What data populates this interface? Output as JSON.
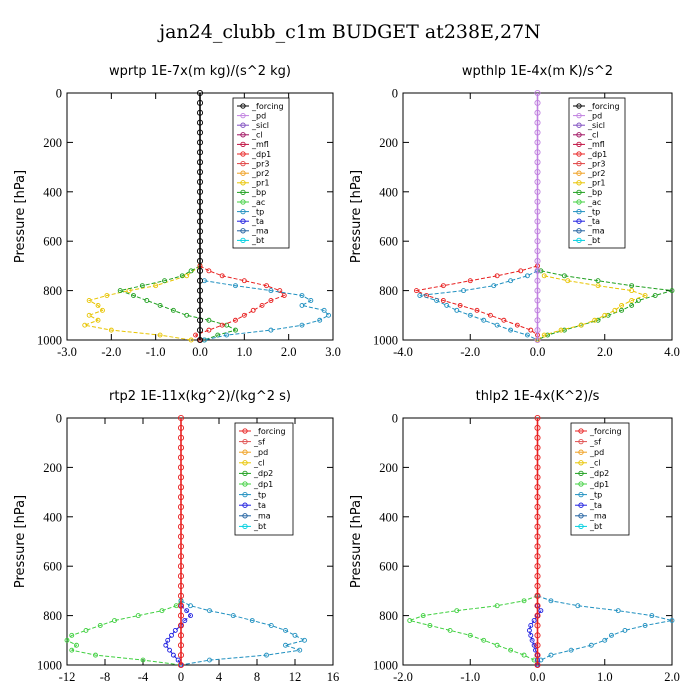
{
  "title": "jan24_clubb_c1m  BUDGET at238E,27N",
  "chart_data": [
    {
      "type": "line",
      "title": "wprtp  1E-7x(m kg)/(s^2 kg)",
      "ylabel": "Pressure [hPa]",
      "xlim": [
        -3.0,
        3.0
      ],
      "ylim": [
        1000,
        0
      ],
      "xticks": [
        "-3.0",
        "-2.0",
        "-1.0",
        "0.0",
        "1.0",
        "2.0",
        "3.0"
      ],
      "yticks": [
        "0",
        "200",
        "400",
        "600",
        "800",
        "1000"
      ],
      "legend": [
        "_forcing",
        "_pd",
        "_sicl",
        "_cl",
        "_mfl",
        "_dp1",
        "_pr3",
        "_pr2",
        "_pr1",
        "_bp",
        "_ac",
        "_tp",
        "_ta",
        "_ma",
        "_bt"
      ],
      "series": [
        {
          "name": "_pr1",
          "color": "#e8c400",
          "y": [
            700,
            740,
            780,
            800,
            820,
            840,
            860,
            880,
            900,
            920,
            940,
            960,
            980,
            1000
          ],
          "x": [
            0.0,
            -0.3,
            -1.0,
            -1.6,
            -2.1,
            -2.5,
            -2.3,
            -2.2,
            -2.5,
            -2.3,
            -2.6,
            -2.0,
            -0.9,
            -0.2
          ]
        },
        {
          "name": "_bp",
          "color": "#20a020",
          "y": [
            700,
            720,
            740,
            760,
            780,
            800,
            820,
            840,
            860,
            880,
            900,
            920,
            940,
            960,
            980,
            1000
          ],
          "x": [
            0.0,
            -0.2,
            -0.4,
            -0.8,
            -1.3,
            -1.8,
            -1.5,
            -1.2,
            -0.9,
            -0.6,
            -0.3,
            0.2,
            0.6,
            0.8,
            0.4,
            0.1
          ]
        },
        {
          "name": "_dp1",
          "color": "#e82020",
          "y": [
            700,
            720,
            740,
            760,
            780,
            800,
            820,
            840,
            860,
            880,
            900,
            920,
            940,
            960,
            980,
            1000
          ],
          "x": [
            0.0,
            0.2,
            0.5,
            1.0,
            1.5,
            1.8,
            1.9,
            1.6,
            1.4,
            1.2,
            1.0,
            0.8,
            0.5,
            0.2,
            -0.1,
            0.0
          ]
        },
        {
          "name": "_tp",
          "color": "#2090c0",
          "y": [
            760,
            780,
            800,
            820,
            840,
            860,
            880,
            900,
            920,
            940,
            960,
            980,
            1000
          ],
          "x": [
            0.1,
            0.8,
            1.6,
            2.3,
            2.5,
            2.3,
            2.8,
            2.9,
            2.7,
            2.3,
            1.6,
            0.6,
            0.1
          ]
        },
        {
          "name": "_forcing",
          "color": "#000000",
          "y": [
            0,
            40,
            80,
            120,
            160,
            200,
            240,
            280,
            320,
            360,
            400,
            440,
            480,
            520,
            560,
            600,
            640,
            680,
            720,
            760,
            800,
            840,
            880,
            920,
            960,
            1000
          ],
          "x": [
            0,
            0,
            0,
            0,
            0,
            0,
            0,
            0,
            0,
            0,
            0,
            0,
            0,
            0,
            0,
            0,
            0,
            0,
            0,
            0,
            0,
            0,
            0,
            0,
            0,
            0
          ]
        }
      ]
    },
    {
      "type": "line",
      "title": "wpthlp  1E-4x(m K)/s^2",
      "ylabel": "Pressure [hPa]",
      "xlim": [
        -4.0,
        4.0
      ],
      "ylim": [
        1000,
        0
      ],
      "xticks": [
        "-4.0",
        "-2.0",
        "0.0",
        "2.0",
        "4.0"
      ],
      "yticks": [
        "0",
        "200",
        "400",
        "600",
        "800",
        "1000"
      ],
      "legend": [
        "_forcing",
        "_pd",
        "_sicl",
        "_cl",
        "_mfl",
        "_dp1",
        "_pr3",
        "_pr2",
        "_pr1",
        "_bp",
        "_ac",
        "_tp",
        "_ta",
        "_ma",
        "_bt"
      ],
      "series": [
        {
          "name": "_dp1",
          "color": "#e82020",
          "y": [
            700,
            720,
            740,
            760,
            780,
            800,
            820,
            840,
            860,
            880,
            900,
            920,
            940,
            960,
            980,
            1000
          ],
          "x": [
            0.0,
            -0.5,
            -1.2,
            -2.0,
            -2.8,
            -3.6,
            -3.3,
            -2.8,
            -2.3,
            -1.8,
            -1.4,
            -1.0,
            -0.6,
            -0.2,
            0.0,
            0.0
          ]
        },
        {
          "name": "_tp",
          "color": "#2090c0",
          "y": [
            720,
            740,
            760,
            780,
            800,
            820,
            840,
            860,
            880,
            900,
            920,
            940,
            960,
            980,
            1000
          ],
          "x": [
            0.0,
            -0.3,
            -0.8,
            -1.3,
            -2.2,
            -3.5,
            -3.0,
            -2.7,
            -2.4,
            -2.0,
            -1.6,
            -1.2,
            -0.8,
            -0.3,
            0.0
          ]
        },
        {
          "name": "_bp",
          "color": "#20a020",
          "y": [
            720,
            740,
            760,
            780,
            800,
            820,
            840,
            860,
            880,
            900,
            920,
            940,
            960,
            980,
            1000
          ],
          "x": [
            0.1,
            0.8,
            1.8,
            2.8,
            4.0,
            3.5,
            3.0,
            2.8,
            2.5,
            2.1,
            1.8,
            1.3,
            0.8,
            0.3,
            0.0
          ]
        },
        {
          "name": "_pr1",
          "color": "#e8c400",
          "y": [
            740,
            760,
            780,
            800,
            820,
            840,
            860,
            880,
            900,
            920,
            940,
            960,
            980,
            1000
          ],
          "x": [
            0.2,
            0.9,
            1.8,
            2.8,
            3.2,
            2.8,
            2.5,
            2.3,
            2.0,
            1.7,
            1.3,
            0.7,
            0.2,
            0.0
          ]
        },
        {
          "name": "_forcing",
          "color": "#c080e0",
          "y": [
            0,
            40,
            80,
            120,
            160,
            200,
            240,
            280,
            320,
            360,
            400,
            440,
            480,
            520,
            560,
            600,
            640,
            680,
            720,
            760,
            800,
            840,
            880,
            920,
            960,
            1000
          ],
          "x": [
            0,
            0,
            0,
            0,
            0,
            0,
            0,
            0,
            0,
            0,
            0,
            0,
            0,
            0,
            0,
            0,
            0,
            0,
            0,
            0,
            0,
            0,
            0,
            0,
            0,
            0
          ]
        }
      ]
    },
    {
      "type": "line",
      "title": "rtp2  1E-11x(kg^2)/(kg^2 s)",
      "ylabel": "Pressure [hPa]",
      "xlim": [
        -12,
        16
      ],
      "ylim": [
        1000,
        0
      ],
      "xticks": [
        "-12",
        "-8",
        "-4",
        "0",
        "4",
        "8",
        "12",
        "16"
      ],
      "yticks": [
        "0",
        "200",
        "400",
        "600",
        "800",
        "1000"
      ],
      "legend": [
        "_forcing",
        "_sf",
        "_pd",
        "_cl",
        "_dp2",
        "_dp1",
        "_tp",
        "_ta",
        "_ma",
        "_bt"
      ],
      "series": [
        {
          "name": "_dp1",
          "color": "#40d040",
          "y": [
            740,
            760,
            780,
            800,
            820,
            840,
            860,
            880,
            900,
            920,
            940,
            960,
            980,
            1000
          ],
          "x": [
            0.0,
            -0.5,
            -2.0,
            -4.5,
            -7.0,
            -8.5,
            -10.0,
            -11.5,
            -12.0,
            -11.0,
            -11.5,
            -9.0,
            -4.0,
            0.0
          ]
        },
        {
          "name": "_tp",
          "color": "#2090c0",
          "y": [
            740,
            760,
            780,
            800,
            820,
            840,
            860,
            880,
            900,
            920,
            940,
            960,
            980,
            1000
          ],
          "x": [
            0.0,
            1.0,
            3.0,
            5.5,
            7.5,
            9.5,
            11.0,
            12.0,
            13.0,
            11.0,
            12.5,
            9.0,
            3.0,
            0.0
          ]
        },
        {
          "name": "_ta",
          "color": "#2020e0",
          "y": [
            760,
            780,
            800,
            820,
            840,
            860,
            880,
            900,
            920,
            940,
            960,
            980,
            1000
          ],
          "x": [
            0.0,
            0.6,
            1.0,
            0.4,
            0.0,
            -0.6,
            -1.0,
            -1.4,
            -1.6,
            -1.2,
            -0.8,
            -0.3,
            0.0
          ]
        },
        {
          "name": "_forcing",
          "color": "#e82020",
          "y": [
            0,
            40,
            80,
            120,
            160,
            200,
            240,
            280,
            320,
            360,
            400,
            440,
            480,
            520,
            560,
            600,
            640,
            680,
            720,
            760,
            800,
            840,
            880,
            920,
            960,
            1000
          ],
          "x": [
            0,
            0,
            0,
            0,
            0,
            0,
            0,
            0,
            0,
            0,
            0,
            0,
            0,
            0,
            0,
            0,
            0,
            0,
            0,
            0,
            0,
            0,
            0,
            0,
            0,
            0
          ]
        }
      ]
    },
    {
      "type": "line",
      "title": "thlp2  1E-4x(K^2)/s",
      "ylabel": "Pressure [hPa]",
      "xlim": [
        -2.0,
        2.0
      ],
      "ylim": [
        1000,
        0
      ],
      "xticks": [
        "-2.0",
        "-1.0",
        "0.0",
        "1.0",
        "2.0"
      ],
      "yticks": [
        "0",
        "200",
        "400",
        "600",
        "800",
        "1000"
      ],
      "legend": [
        "_forcing",
        "_sf",
        "_pd",
        "_cl",
        "_dp2",
        "_dp1",
        "_tp",
        "_ta",
        "_ma",
        "_bt"
      ],
      "series": [
        {
          "name": "_dp1",
          "color": "#40d040",
          "y": [
            720,
            740,
            760,
            780,
            800,
            820,
            840,
            860,
            880,
            900,
            920,
            940,
            960,
            980,
            1000
          ],
          "x": [
            0.0,
            -0.2,
            -0.6,
            -1.2,
            -1.7,
            -1.9,
            -1.6,
            -1.3,
            -1.0,
            -0.8,
            -0.6,
            -0.4,
            -0.2,
            -0.05,
            0.0
          ]
        },
        {
          "name": "_tp",
          "color": "#2090c0",
          "y": [
            720,
            740,
            760,
            780,
            800,
            820,
            840,
            860,
            880,
            900,
            920,
            940,
            960,
            980,
            1000
          ],
          "x": [
            0.0,
            0.2,
            0.6,
            1.2,
            1.7,
            2.0,
            1.6,
            1.3,
            1.1,
            1.0,
            0.8,
            0.5,
            0.2,
            0.05,
            0.0
          ]
        },
        {
          "name": "_ta",
          "color": "#2020e0",
          "y": [
            760,
            780,
            800,
            820,
            840,
            860,
            880,
            900,
            920,
            940,
            960,
            980,
            1000
          ],
          "x": [
            0.0,
            0.05,
            0.0,
            -0.05,
            -0.1,
            -0.12,
            -0.1,
            -0.08,
            -0.05,
            -0.03,
            0.0,
            0.0,
            0.0
          ]
        },
        {
          "name": "_forcing",
          "color": "#e82020",
          "y": [
            0,
            40,
            80,
            120,
            160,
            200,
            240,
            280,
            320,
            360,
            400,
            440,
            480,
            520,
            560,
            600,
            640,
            680,
            720,
            760,
            800,
            840,
            880,
            920,
            960,
            1000
          ],
          "x": [
            0,
            0,
            0,
            0,
            0,
            0,
            0,
            0,
            0,
            0,
            0,
            0,
            0,
            0,
            0,
            0,
            0,
            0,
            0,
            0,
            0,
            0,
            0,
            0,
            0,
            0
          ]
        }
      ]
    }
  ],
  "legend_colors": {
    "_forcing": "#000000",
    "_pd": "#c080e0",
    "_sicl": "#8050c0",
    "_cl": "#a01060",
    "_mfl": "#c01040",
    "_dp1": "#e82020",
    "_pr3": "#e04040",
    "_pr2": "#f0a020",
    "_pr1": "#e8c400",
    "_bp": "#20a020",
    "_ac": "#40d040",
    "_tp": "#2090c0",
    "_ta": "#2020e0",
    "_ma": "#2060a0",
    "_bt": "#00d0e0",
    "_sf": "#e05050",
    "_dp2": "#30b030"
  },
  "legend_colors_lower": {
    "_forcing": "#e82020",
    "_sf": "#e05050",
    "_pd": "#f0a020",
    "_cl": "#e8c400",
    "_dp2": "#20a020",
    "_dp1": "#40d040",
    "_tp": "#2090c0",
    "_ta": "#2020e0",
    "_ma": "#2060a0",
    "_bt": "#00d0e0"
  }
}
